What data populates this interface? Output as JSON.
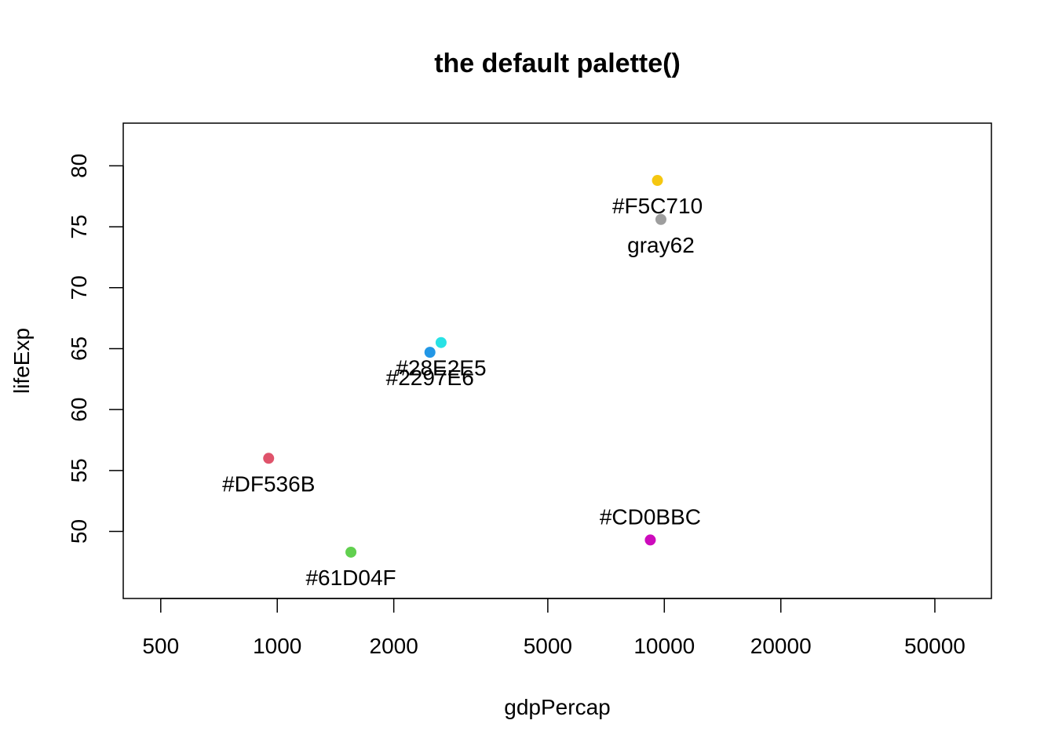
{
  "chart_data": {
    "type": "scatter",
    "title": "the default palette()",
    "xlabel": "gdpPercap",
    "ylabel": "lifeExp",
    "x_scale": "log",
    "xlim": [
      400,
      70000
    ],
    "ylim": [
      44.5,
      83.5
    ],
    "x_ticks": [
      500,
      1000,
      2000,
      5000,
      10000,
      20000,
      50000
    ],
    "y_ticks": [
      50,
      55,
      60,
      65,
      70,
      75,
      80
    ],
    "grid": false,
    "points": [
      {
        "x": 950,
        "y": 56.0,
        "color": "#DF536B",
        "label": "#DF536B",
        "label_pos": "below"
      },
      {
        "x": 1550,
        "y": 48.3,
        "color": "#61D04F",
        "label": "#61D04F",
        "label_pos": "below"
      },
      {
        "x": 2480,
        "y": 64.7,
        "color": "#2297E6",
        "label": "#2297E6",
        "label_pos": "below"
      },
      {
        "x": 2650,
        "y": 65.5,
        "color": "#28E2E5",
        "label": "#28E2E5",
        "label_pos": "below"
      },
      {
        "x": 9200,
        "y": 49.3,
        "color": "#CD0BBC",
        "label": "#CD0BBC",
        "label_pos": "above"
      },
      {
        "x": 9600,
        "y": 78.8,
        "color": "#F5C710",
        "label": "#F5C710",
        "label_pos": "below"
      },
      {
        "x": 9800,
        "y": 75.6,
        "color": "#9E9E9E",
        "label": "gray62",
        "label_pos": "below"
      }
    ]
  }
}
